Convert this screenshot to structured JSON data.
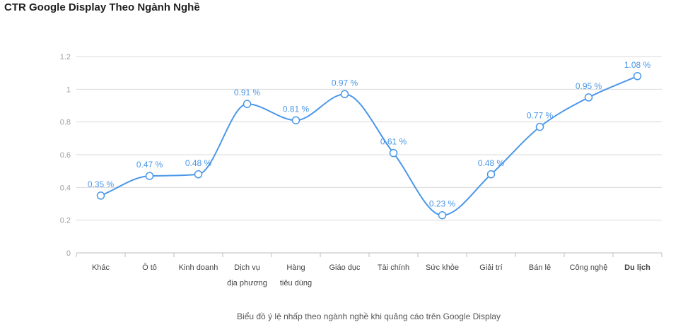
{
  "title": "CTR Google Display Theo Ngành Nghề",
  "caption": "Biểu đồ ý lệ nhấp theo ngành nghề khi quảng cáo trên Google Display",
  "chart_data": {
    "type": "line",
    "title": "CTR Google Display Theo Ngành Nghề",
    "categories": [
      [
        "Khác"
      ],
      [
        "Ô tô"
      ],
      [
        "Kinh doanh"
      ],
      [
        "Dịch vụ",
        "địa phương"
      ],
      [
        "Hàng",
        "tiêu dùng"
      ],
      [
        "Giáo dục"
      ],
      [
        "Tài chính"
      ],
      [
        "Sức khỏe"
      ],
      [
        "Giải trí"
      ],
      [
        "Bán lẻ"
      ],
      [
        "Công nghệ"
      ],
      [
        "Du lịch"
      ]
    ],
    "values": [
      0.35,
      0.47,
      0.48,
      0.91,
      0.81,
      0.97,
      0.61,
      0.23,
      0.48,
      0.77,
      0.95,
      1.08
    ],
    "labels": [
      "0.35 %",
      "0.47 %",
      "0.48 %",
      "0.91 %",
      "0.81 %",
      "0.97 %",
      "0.61 %",
      "0.23 %",
      "0.48 %",
      "0.77 %",
      "0.95 %",
      "1.08 %"
    ],
    "bold_category_index": 11,
    "yticks": [
      "0",
      "0.2",
      "0.4",
      "0.6",
      "0.8",
      "1",
      "1.2"
    ],
    "ylim": [
      0,
      1.2
    ],
    "grid": true,
    "line_color": "#4a97e9",
    "grid_color": "#d9d9d9"
  }
}
